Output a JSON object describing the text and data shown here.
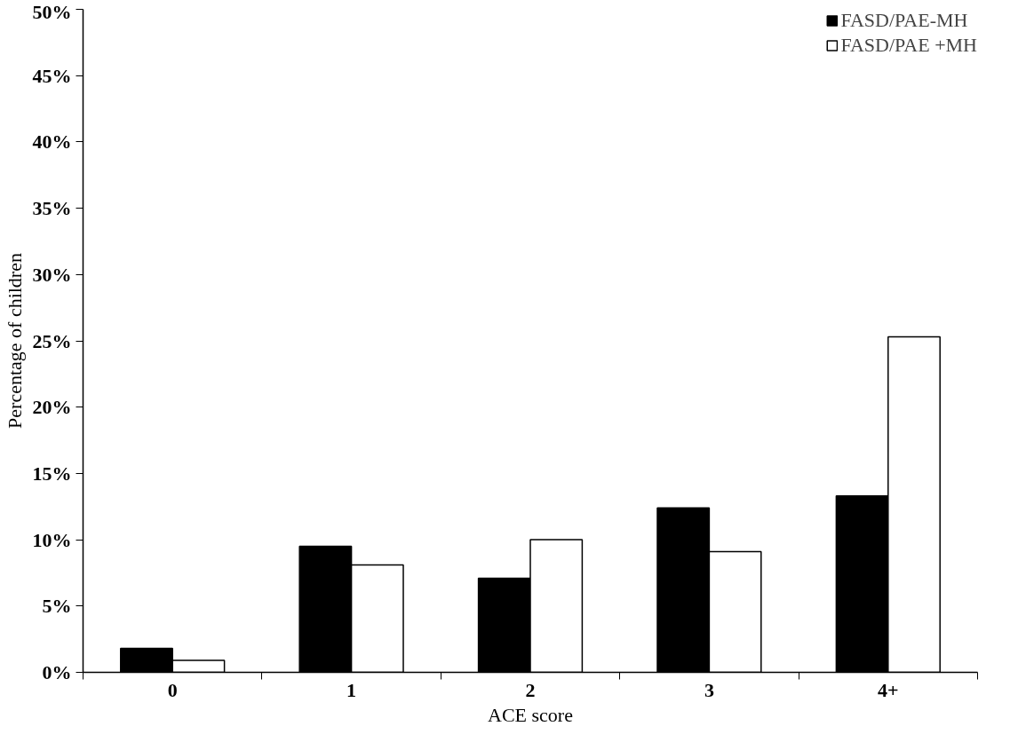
{
  "chart_data": {
    "type": "bar",
    "xlabel": "ACE score",
    "ylabel": "Percentage of children",
    "categories": [
      "0",
      "1",
      "2",
      "3",
      "4+"
    ],
    "series": [
      {
        "name": "FASD/PAE-MH",
        "color": "#000000",
        "values": [
          1.8,
          9.5,
          7.1,
          12.4,
          13.3
        ]
      },
      {
        "name": "FASD/PAE +MH",
        "color": "#ffffff",
        "values": [
          0.9,
          8.1,
          10.0,
          9.1,
          25.3
        ]
      }
    ],
    "ylim": [
      0,
      50
    ],
    "yticks": [
      {
        "value": 0,
        "label": "0%"
      },
      {
        "value": 5,
        "label": "5%"
      },
      {
        "value": 10,
        "label": "10%"
      },
      {
        "value": 15,
        "label": "15%"
      },
      {
        "value": 20,
        "label": "20%"
      },
      {
        "value": 25,
        "label": "25%"
      },
      {
        "value": 30,
        "label": "30%"
      },
      {
        "value": 35,
        "label": "35%"
      },
      {
        "value": 40,
        "label": "40%"
      },
      {
        "value": 45,
        "label": "45%"
      },
      {
        "value": 50,
        "label": "50%"
      }
    ],
    "grid": false,
    "legend": "top right"
  }
}
